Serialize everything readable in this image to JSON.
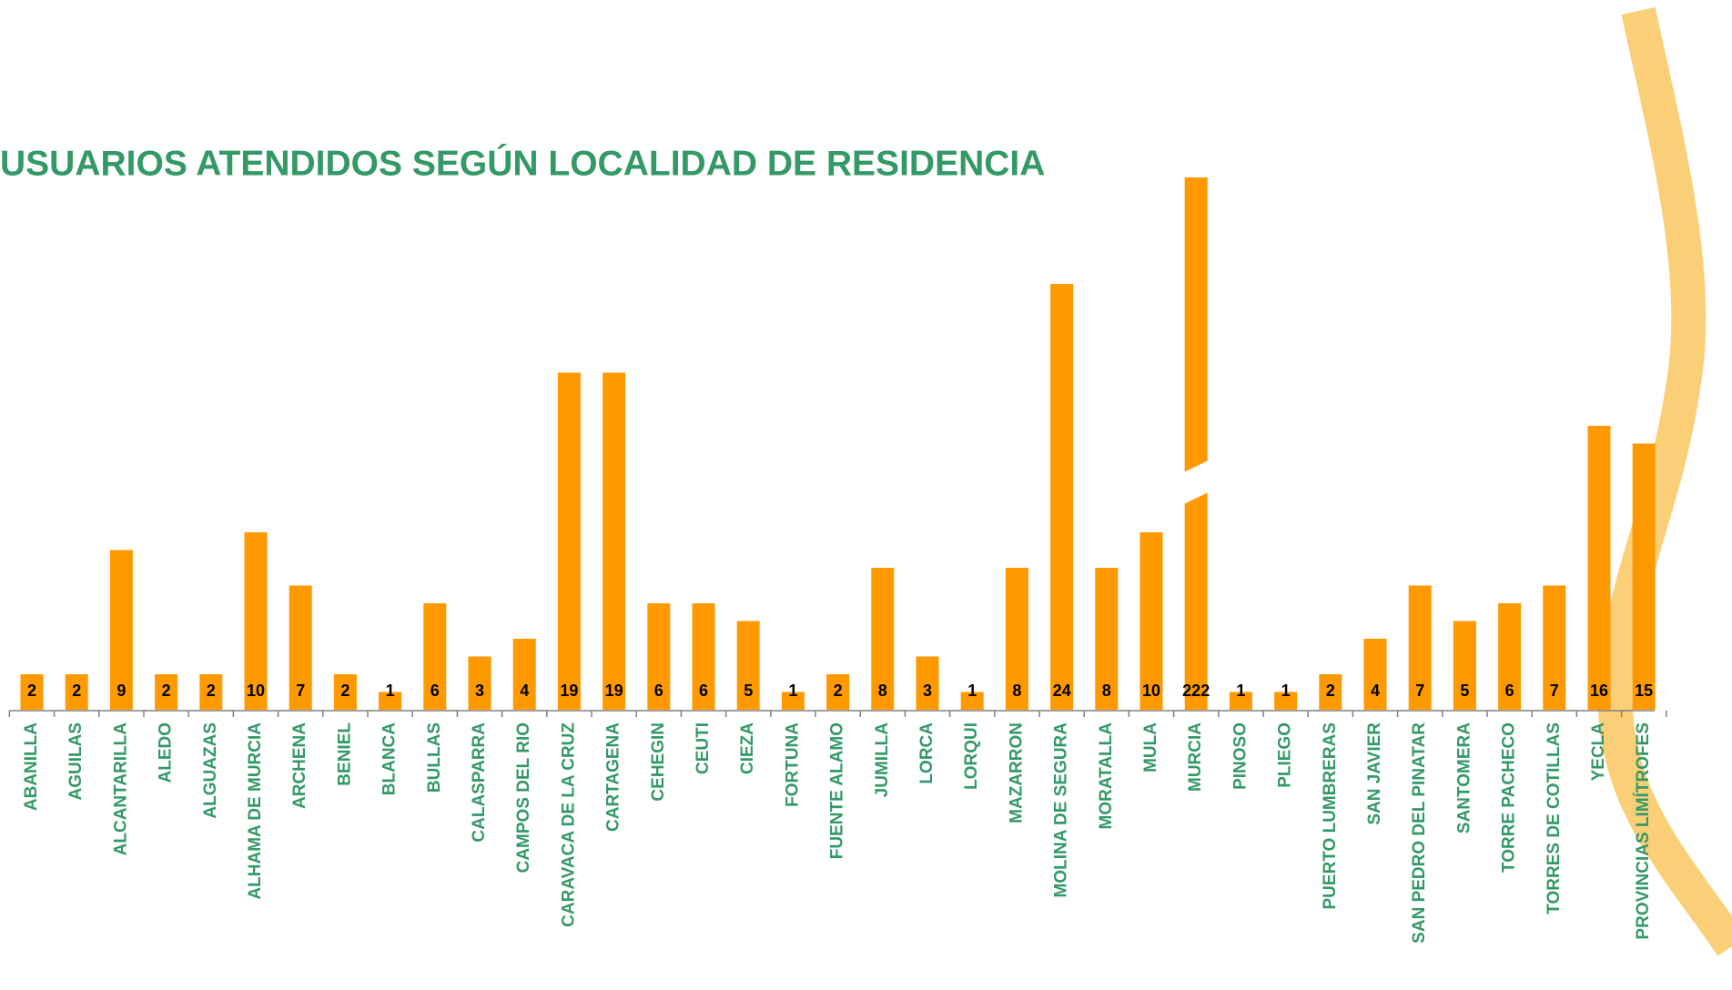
{
  "chart_data": {
    "type": "bar",
    "title": "USUARIOS ATENDIDOS SEGÚN LOCALIDAD DE RESIDENCIA",
    "categories": [
      "ABANILLA",
      "AGUILAS",
      "ALCANTARILLA",
      "ALEDO",
      "ALGUAZAS",
      "ALHAMA DE MURCIA",
      "ARCHENA",
      "BENIEL",
      "BLANCA",
      "BULLAS",
      "CALASPARRA",
      "CAMPOS DEL RIO",
      "CARAVACA DE LA CRUZ",
      "CARTAGENA",
      "CEHEGIN",
      "CEUTI",
      "CIEZA",
      "FORTUNA",
      "FUENTE ALAMO",
      "JUMILLA",
      "LORCA",
      "LORQUI",
      "MAZARRON",
      "MOLINA DE SEGURA",
      "MORATALLA",
      "MULA",
      "MURCIA",
      "PINOSO",
      "PLIEGO",
      "PUERTO LUMBRERAS",
      "SAN JAVIER",
      "SAN PEDRO DEL PINATAR",
      "SANTOMERA",
      "TORRE PACHECO",
      "TORRES DE COTILLAS",
      "YECLA",
      "PROVINCIAS LIMÍTROFES"
    ],
    "values": [
      2,
      2,
      9,
      2,
      2,
      10,
      7,
      2,
      1,
      6,
      3,
      4,
      19,
      19,
      6,
      6,
      5,
      1,
      2,
      8,
      3,
      1,
      8,
      24,
      8,
      10,
      222,
      1,
      1,
      2,
      4,
      7,
      5,
      6,
      7,
      16,
      15
    ],
    "color": "#ff9900"
  }
}
